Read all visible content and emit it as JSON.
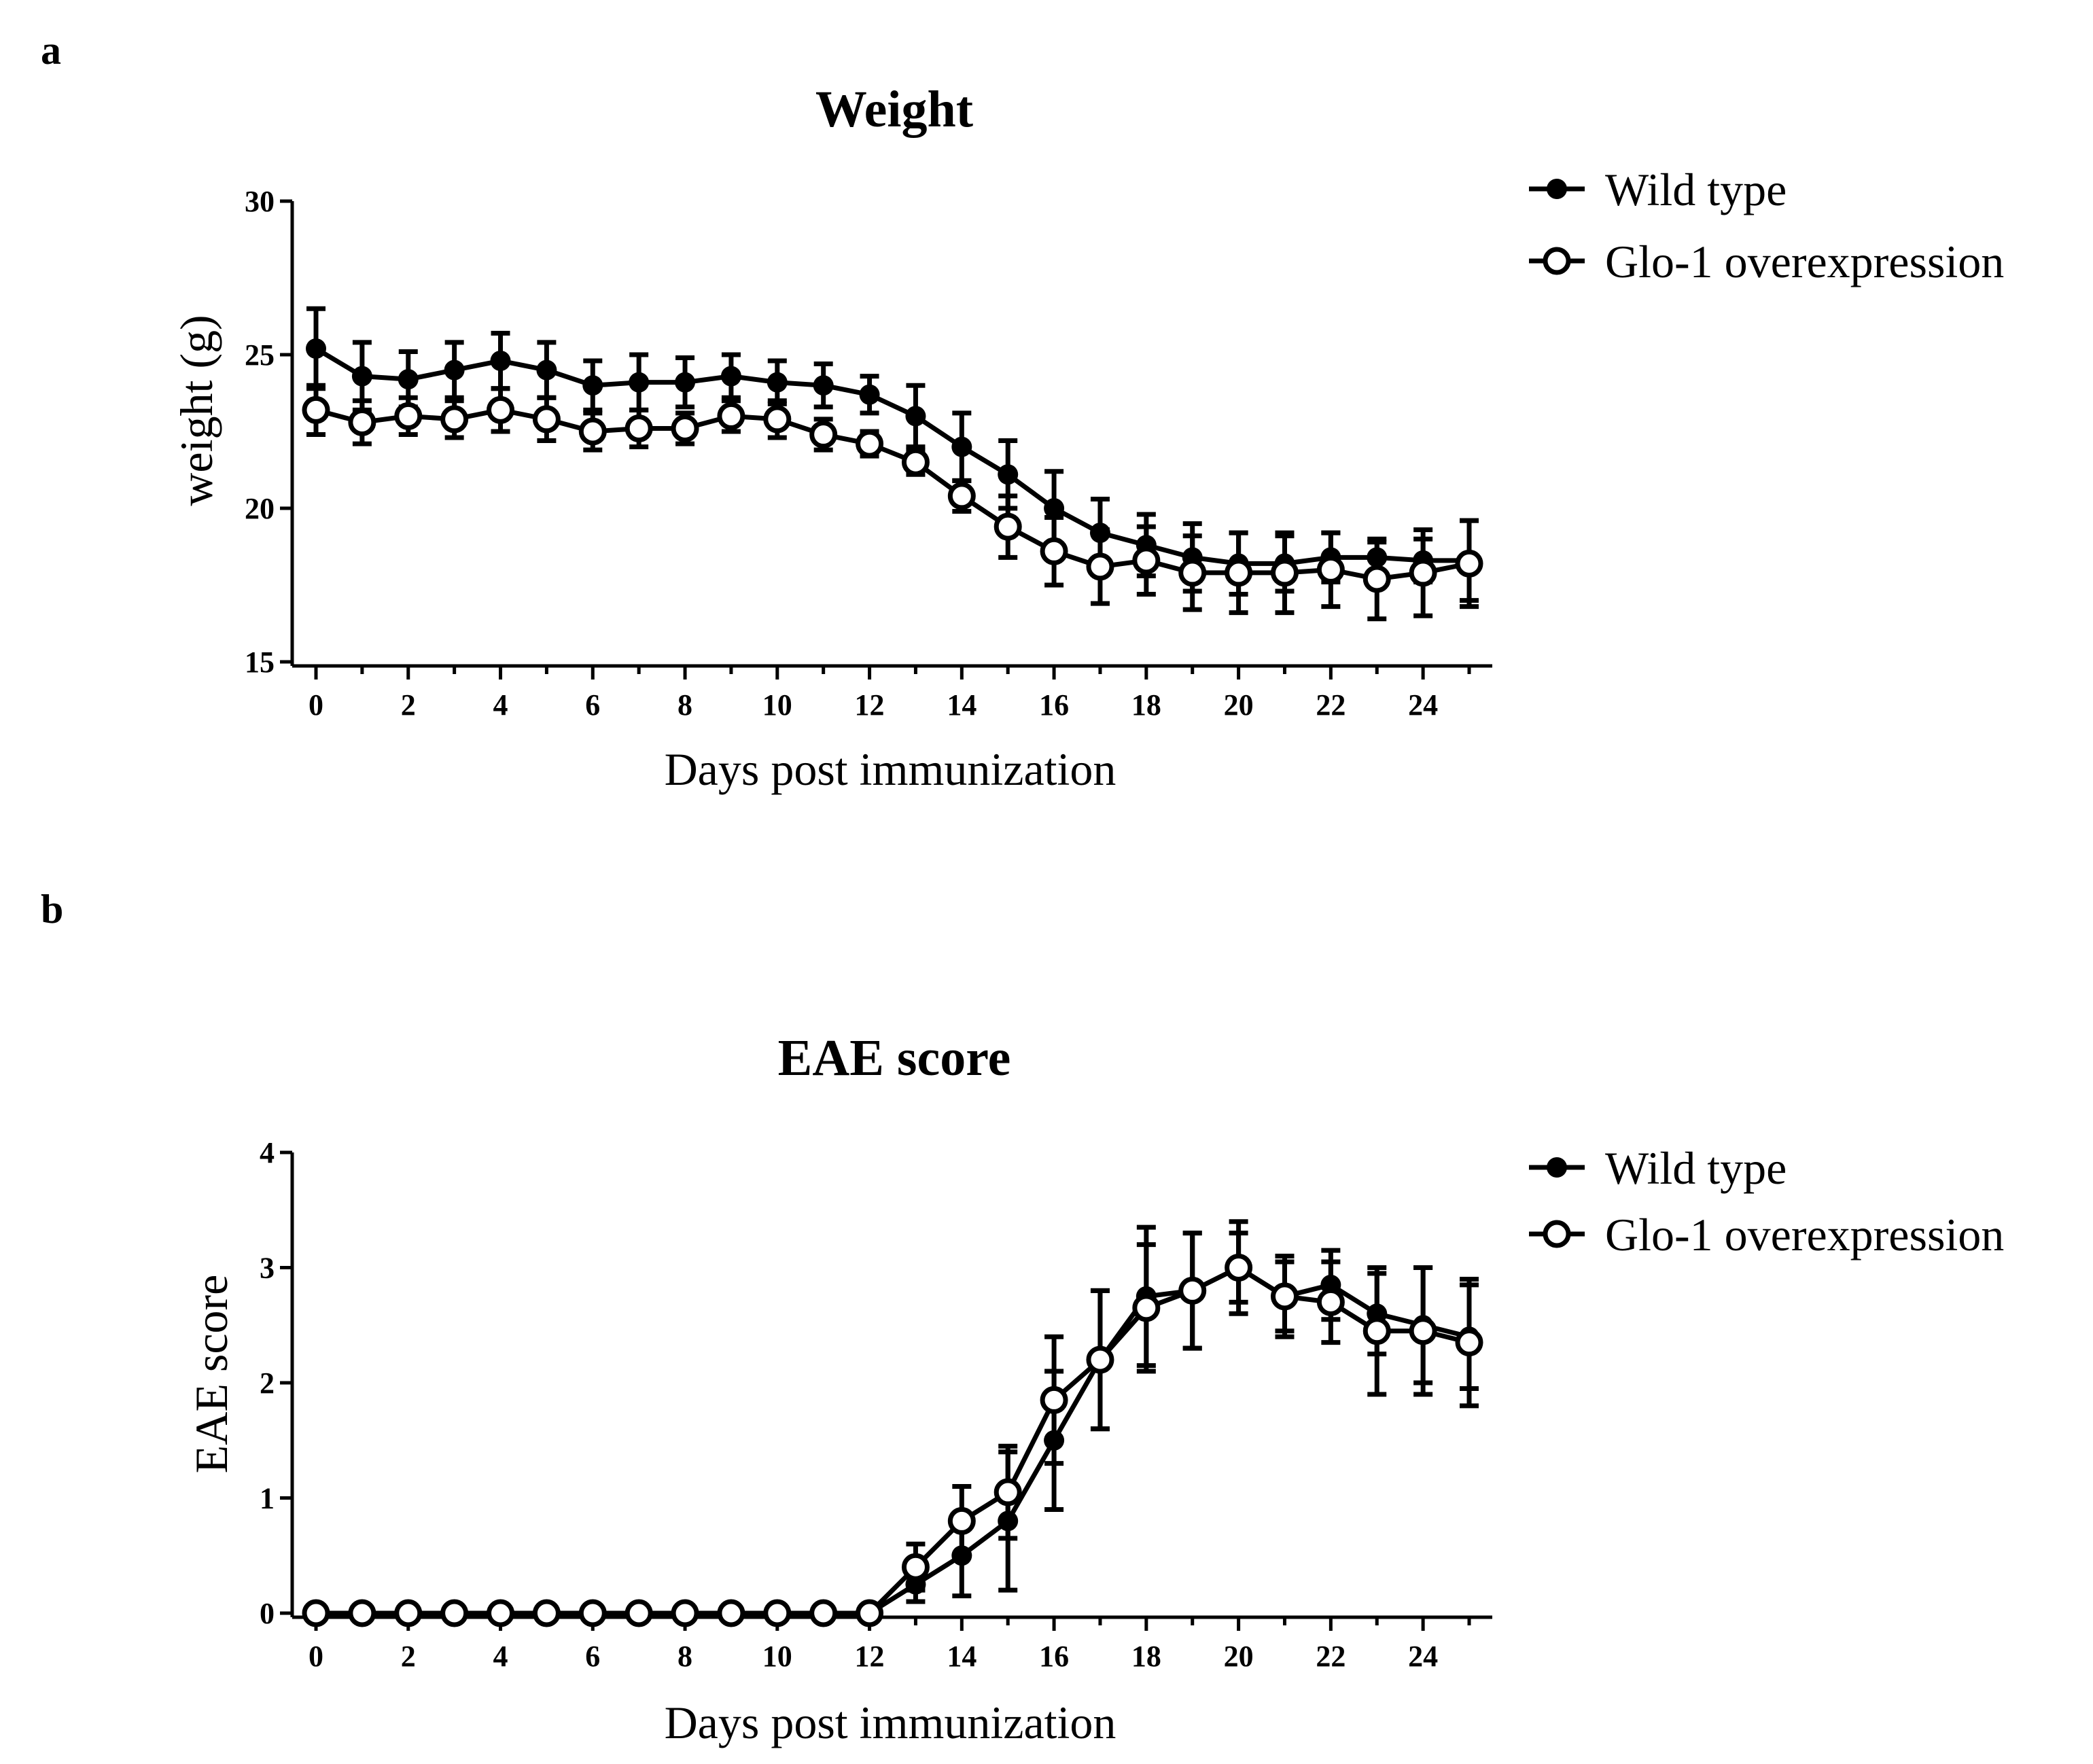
{
  "chart_data": [
    {
      "panel": "a",
      "type": "line",
      "title": "Weight",
      "xlabel": "Days post immunization",
      "ylabel": "weight (g)",
      "xlim": [
        0,
        25
      ],
      "ylim": [
        15,
        30
      ],
      "xticks": [
        "0",
        "2",
        "4",
        "6",
        "8",
        "10",
        "12",
        "14",
        "16",
        "18",
        "20",
        "22",
        "24"
      ],
      "yticks": [
        "15",
        "20",
        "25",
        "30"
      ],
      "legend_position": "top-right",
      "x": [
        0,
        1,
        2,
        3,
        4,
        5,
        6,
        7,
        8,
        9,
        10,
        11,
        12,
        13,
        14,
        15,
        16,
        17,
        18,
        19,
        20,
        21,
        22,
        23,
        24,
        25
      ],
      "series": [
        {
          "name": "Wild type",
          "marker": "filled-circle",
          "values": [
            25.2,
            24.3,
            24.2,
            24.5,
            24.8,
            24.5,
            24.0,
            24.1,
            24.1,
            24.3,
            24.1,
            24.0,
            23.7,
            23.0,
            22.0,
            21.1,
            20.0,
            19.2,
            18.8,
            18.4,
            18.2,
            18.2,
            18.4,
            18.4,
            18.3,
            18.3
          ],
          "errors": [
            1.3,
            1.1,
            0.9,
            0.9,
            0.9,
            0.9,
            0.8,
            0.9,
            0.8,
            0.7,
            0.7,
            0.7,
            0.6,
            1.0,
            1.1,
            1.1,
            1.2,
            1.1,
            1.0,
            1.1,
            1.0,
            0.9,
            0.8,
            0.5,
            0.7,
            1.3
          ]
        },
        {
          "name": "Glo-1 overexpression",
          "marker": "open-circle",
          "values": [
            23.2,
            22.8,
            23.0,
            22.9,
            23.2,
            22.9,
            22.5,
            22.6,
            22.6,
            23.0,
            22.9,
            22.4,
            22.1,
            21.5,
            20.4,
            19.4,
            18.6,
            18.1,
            18.3,
            17.9,
            17.9,
            17.9,
            18.0,
            17.7,
            17.9,
            18.2
          ],
          "errors": [
            0.8,
            0.7,
            0.6,
            0.6,
            0.7,
            0.7,
            0.6,
            0.6,
            0.5,
            0.5,
            0.6,
            0.5,
            0.4,
            0.4,
            0.5,
            1.0,
            1.1,
            1.2,
            1.1,
            1.2,
            1.3,
            1.3,
            1.2,
            1.3,
            1.4,
            1.4
          ]
        }
      ]
    },
    {
      "panel": "b",
      "type": "line",
      "title": "EAE score",
      "xlabel": "Days post immunization",
      "ylabel": "EAE score",
      "xlim": [
        0,
        25
      ],
      "ylim": [
        0,
        4
      ],
      "xticks": [
        "0",
        "2",
        "4",
        "6",
        "8",
        "10",
        "12",
        "14",
        "16",
        "18",
        "20",
        "22",
        "24"
      ],
      "yticks": [
        "0",
        "1",
        "2",
        "3",
        "4"
      ],
      "legend_position": "top-right",
      "x": [
        0,
        1,
        2,
        3,
        4,
        5,
        6,
        7,
        8,
        9,
        10,
        11,
        12,
        13,
        14,
        15,
        16,
        17,
        18,
        19,
        20,
        21,
        22,
        23,
        24,
        25
      ],
      "series": [
        {
          "name": "Wild type",
          "marker": "filled-circle",
          "values": [
            0,
            0,
            0,
            0,
            0,
            0,
            0,
            0,
            0,
            0,
            0,
            0,
            0,
            0.25,
            0.5,
            0.8,
            1.5,
            2.2,
            2.75,
            2.8,
            3.0,
            2.75,
            2.85,
            2.6,
            2.5,
            2.4
          ],
          "errors": [
            0,
            0,
            0,
            0,
            0,
            0,
            0,
            0,
            0,
            0,
            0,
            0,
            0,
            0.15,
            0.35,
            0.6,
            0.6,
            0.6,
            0.6,
            0.5,
            0.4,
            0.35,
            0.3,
            0.35,
            0.5,
            0.45
          ]
        },
        {
          "name": "Glo-1 overexpression",
          "marker": "open-circle",
          "values": [
            0,
            0,
            0,
            0,
            0,
            0,
            0,
            0,
            0,
            0,
            0,
            0,
            0,
            0.4,
            0.8,
            1.05,
            1.85,
            2.2,
            2.65,
            2.8,
            3.0,
            2.75,
            2.7,
            2.45,
            2.45,
            2.35
          ],
          "errors": [
            0,
            0,
            0,
            0,
            0,
            0,
            0,
            0,
            0,
            0,
            0,
            0,
            0,
            0.2,
            0.3,
            0.4,
            0.55,
            0.6,
            0.55,
            0.5,
            0.3,
            0.3,
            0.35,
            0.55,
            0.55,
            0.55
          ]
        }
      ]
    }
  ]
}
